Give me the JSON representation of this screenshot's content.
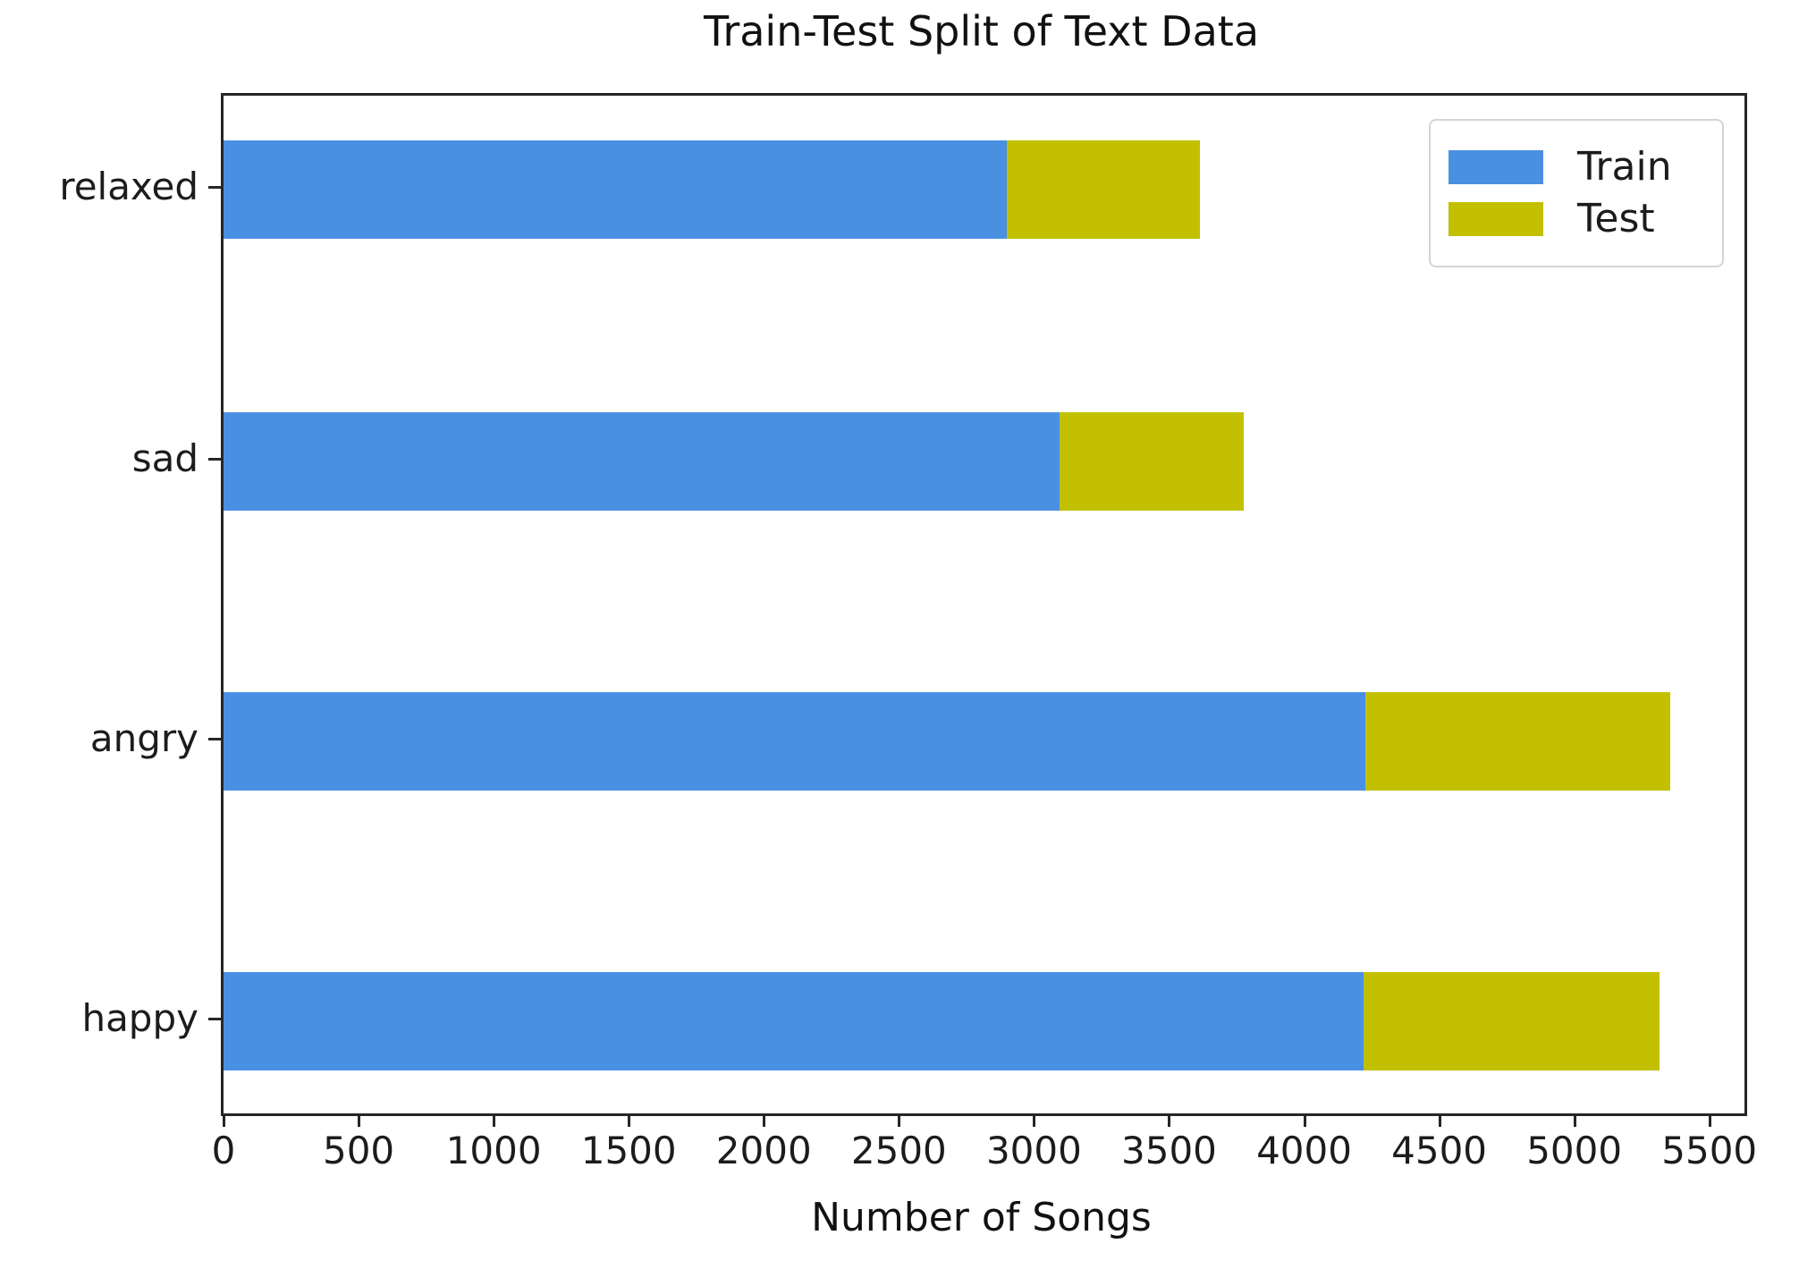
{
  "chart_data": {
    "type": "bar",
    "orientation": "horizontal",
    "stacked": true,
    "title": "Train-Test Split of Text Data",
    "xlabel": "Number of Songs",
    "ylabel": "",
    "categories_top_to_bottom": [
      "relaxed",
      "sad",
      "angry",
      "happy"
    ],
    "series": [
      {
        "name": "Train",
        "color": "#4A90E2",
        "values_top_to_bottom": [
          2900,
          3095,
          4225,
          4220
        ]
      },
      {
        "name": "Test",
        "color": "#C2C000",
        "values_top_to_bottom": [
          715,
          680,
          1130,
          1095
        ]
      }
    ],
    "x_ticks": [
      0,
      500,
      1000,
      1500,
      2000,
      2500,
      3000,
      3500,
      4000,
      4500,
      5000,
      5500
    ],
    "xlim": [
      0,
      5630
    ],
    "grid": false,
    "legend": {
      "position": "upper right",
      "entries": [
        "Train",
        "Test"
      ]
    }
  }
}
